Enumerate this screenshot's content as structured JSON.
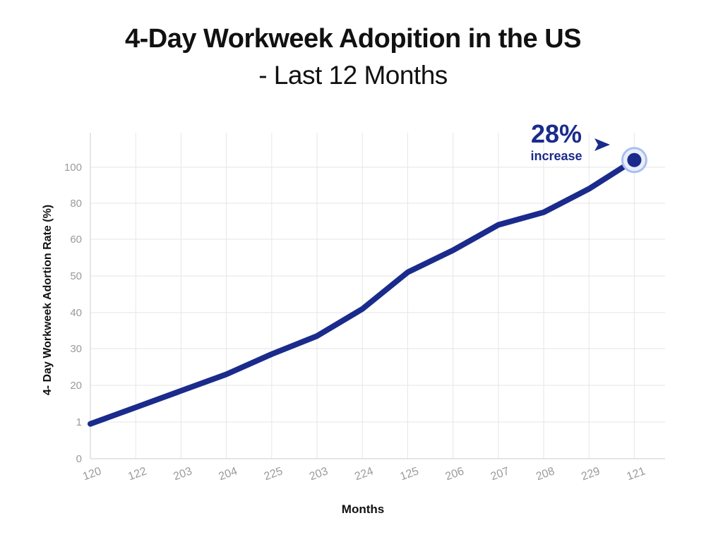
{
  "title": {
    "line1": "4-Day Workweek Adopition in the US",
    "line2": "- Last 12 Months"
  },
  "colors": {
    "series": "#1a2b8c",
    "grid": "#e6e6e6",
    "tick_text": "#9a9a9a",
    "axis_label": "#111111",
    "annotation": "#1a2b8c"
  },
  "annotation": {
    "value": "28%",
    "label": "increase",
    "arrow": "right-pointing-triangle"
  },
  "chart_data": {
    "type": "line",
    "title": "4-Day Workweek Adopition in the US - Last 12 Months",
    "xlabel": "Months",
    "ylabel": "4- Day Workweek Adortion Rate (%)",
    "categories": [
      "120",
      "122",
      "203",
      "204",
      "225",
      "203",
      "224",
      "125",
      "206",
      "207",
      "208",
      "229",
      "121"
    ],
    "y_ticks": [
      "0",
      "1",
      "20",
      "30",
      "40",
      "50",
      "60",
      "80",
      "100"
    ],
    "series": [
      {
        "name": "",
        "values": [
          9.5,
          14,
          18.5,
          23,
          28.5,
          33.5,
          41,
          51,
          57,
          68,
          75,
          88,
          104
        ]
      }
    ],
    "ylim": [
      0,
      110
    ],
    "grid": true,
    "legend": "none"
  }
}
